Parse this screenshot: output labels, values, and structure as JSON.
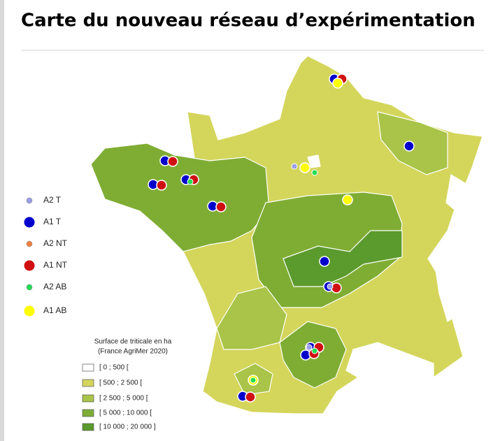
{
  "title": "Carte du nouveau réseau d’expérimentation",
  "legend_points": [
    {
      "label": "A2 T",
      "color": "#9a9ee8",
      "size": "small"
    },
    {
      "label": "A1 T",
      "color": "#0000cc",
      "size": "large"
    },
    {
      "label": "A2 NT",
      "color": "#f08040",
      "size": "small"
    },
    {
      "label": "A1 NT",
      "color": "#d01010",
      "size": "large"
    },
    {
      "label": "A2 AB",
      "color": "#22dd55",
      "size": "small"
    },
    {
      "label": "A1 AB",
      "color": "#ffff00",
      "size": "large"
    }
  ],
  "legend_surface": {
    "title": [
      "Surface de triticale en ha",
      "(France AgriMer 2020)"
    ],
    "classes": [
      {
        "label": "[ 0 ; 500 [",
        "color": "#ffffff"
      },
      {
        "label": "[ 500 ; 2 500 [",
        "color": "#d4d65c"
      },
      {
        "label": "[ 2 500 ; 5 000 [",
        "color": "#a9c448"
      },
      {
        "label": "[ 5 000 ; 10 000 [",
        "color": "#7fad34"
      },
      {
        "label": "[ 10 000 ; 20 000 ]",
        "color": "#5b9a2c"
      }
    ]
  }
}
